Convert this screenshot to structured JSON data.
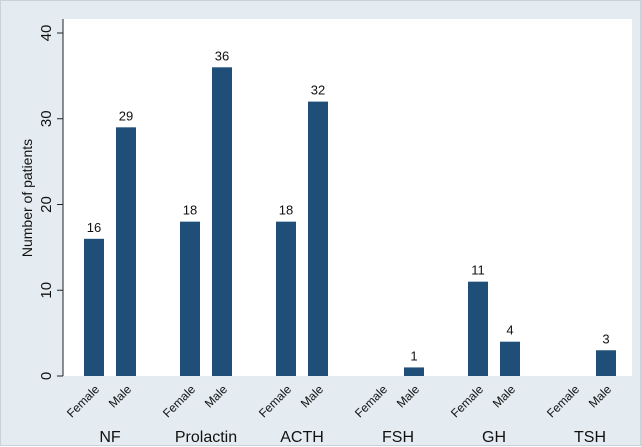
{
  "chart_data": {
    "type": "bar",
    "title": "",
    "ylabel": "Number of patients",
    "xlabel": "",
    "ylim": [
      0,
      40
    ],
    "yticks": [
      0,
      10,
      20,
      30,
      40
    ],
    "grid": false,
    "bar_color": "#1f4e79",
    "groups": [
      {
        "label": "NF",
        "bars": [
          {
            "sex": "Female",
            "value": 16
          },
          {
            "sex": "Male",
            "value": 29
          }
        ]
      },
      {
        "label": "Prolactin",
        "bars": [
          {
            "sex": "Female",
            "value": 18
          },
          {
            "sex": "Male",
            "value": 36
          }
        ]
      },
      {
        "label": "ACTH",
        "bars": [
          {
            "sex": "Female",
            "value": 18
          },
          {
            "sex": "Male",
            "value": 32
          }
        ]
      },
      {
        "label": "FSH",
        "bars": [
          {
            "sex": "Female",
            "value": 0
          },
          {
            "sex": "Male",
            "value": 1
          }
        ]
      },
      {
        "label": "GH",
        "bars": [
          {
            "sex": "Female",
            "value": 11
          },
          {
            "sex": "Male",
            "value": 4
          }
        ]
      },
      {
        "label": "TSH",
        "bars": [
          {
            "sex": "Female",
            "value": 0
          },
          {
            "sex": "Male",
            "value": 3
          }
        ]
      }
    ]
  }
}
